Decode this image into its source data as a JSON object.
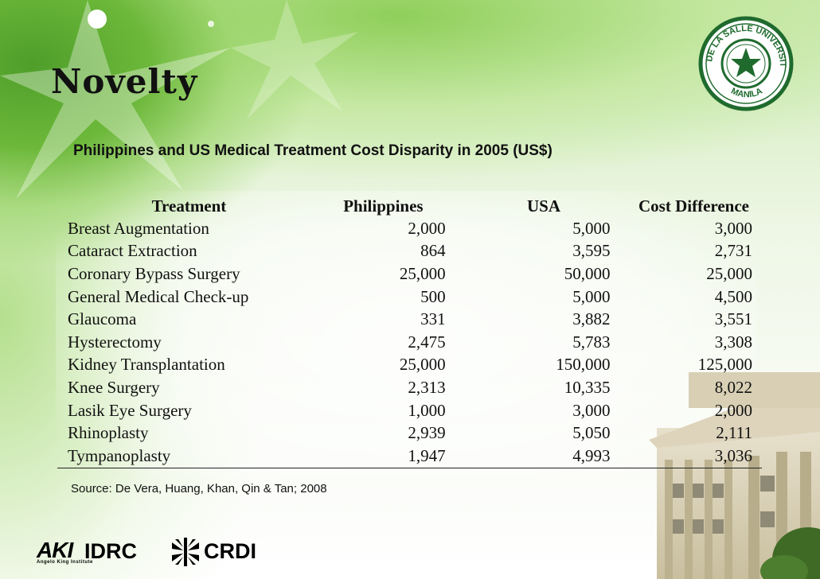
{
  "slide": {
    "title": "Novelty",
    "subtitle": "Philippines and US Medical Treatment Cost Disparity in 2005 (US$)",
    "source": "Source: De Vera, Huang, Khan, Qin & Tan; 2008"
  },
  "table": {
    "headers": [
      "Treatment",
      "Philippines",
      "USA",
      "Cost Difference"
    ],
    "rows": [
      [
        "Breast Augmentation",
        "2,000",
        "5,000",
        "3,000"
      ],
      [
        "Cataract Extraction",
        "864",
        "3,595",
        "2,731"
      ],
      [
        "Coronary Bypass Surgery",
        "25,000",
        "50,000",
        "25,000"
      ],
      [
        "General Medical Check-up",
        "500",
        "5,000",
        "4,500"
      ],
      [
        "Glaucoma",
        "331",
        "3,882",
        "3,551"
      ],
      [
        "Hysterectomy",
        "2,475",
        "5,783",
        "3,308"
      ],
      [
        "Kidney Transplantation",
        "25,000",
        "150,000",
        "125,000"
      ],
      [
        "Knee Surgery",
        "2,313",
        "10,335",
        "8,022"
      ],
      [
        "Lasik Eye Surgery",
        "1,000",
        "3,000",
        "2,000"
      ],
      [
        "Rhinoplasty",
        "2,939",
        "5,050",
        "2,111"
      ],
      [
        "Tympanoplasty",
        "1,947",
        "4,993",
        "3,036"
      ]
    ]
  },
  "logos": {
    "seal_text": "DE LA SALLE UNIVERSITY MANILA",
    "aki": "AKI",
    "aki_sub": "Angelo King Institute",
    "idrc": "IDRC",
    "crdi": "CRDI"
  },
  "colors": {
    "accent_green": "#6cb83a",
    "seal_green": "#1f6b2e",
    "text": "#111111"
  }
}
